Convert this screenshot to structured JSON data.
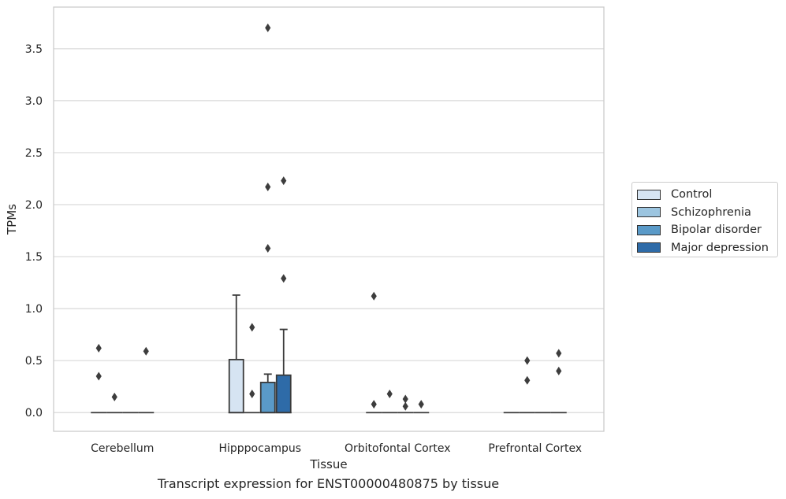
{
  "chart_data": {
    "type": "box",
    "title": "",
    "xlabel": "Tissue",
    "ylabel": "TPMs",
    "caption": "Transcript expression for ENST00000480875 by tissue",
    "categories": [
      "Cerebellum",
      "Hipppocampus",
      "Orbitofontal Cortex",
      "Prefrontal Cortex"
    ],
    "ylim": [
      -0.18,
      3.9
    ],
    "yticks": [
      0.0,
      0.5,
      1.0,
      1.5,
      2.0,
      2.5,
      3.0,
      3.5
    ],
    "ytick_labels": [
      "0.0",
      "0.5",
      "1.0",
      "1.5",
      "2.0",
      "2.5",
      "3.0",
      "3.5"
    ],
    "grid": "horizontal",
    "legend_position": "right",
    "series": [
      {
        "name": "Control",
        "color": "#d6e4f2",
        "boxes": [
          {
            "q1": 0,
            "median": 0,
            "q3": 0,
            "whisker_low": 0,
            "whisker_high": 0,
            "outliers": [
              0.62,
              0.35
            ]
          },
          {
            "q1": 0,
            "median": 0,
            "q3": 0.51,
            "whisker_low": 0,
            "whisker_high": 1.13,
            "outliers": []
          },
          {
            "q1": 0,
            "median": 0,
            "q3": 0,
            "whisker_low": 0,
            "whisker_high": 0,
            "outliers": [
              1.12,
              0.08
            ]
          },
          {
            "q1": 0,
            "median": 0,
            "q3": 0,
            "whisker_low": 0,
            "whisker_high": 0,
            "outliers": []
          }
        ]
      },
      {
        "name": "Schizophrenia",
        "color": "#9cc5e0",
        "boxes": [
          {
            "q1": 0,
            "median": 0,
            "q3": 0,
            "whisker_low": 0,
            "whisker_high": 0,
            "outliers": [
              0.15
            ]
          },
          {
            "q1": 0,
            "median": 0,
            "q3": 0,
            "whisker_low": 0,
            "whisker_high": 0,
            "outliers": [
              0.82,
              0.18
            ]
          },
          {
            "q1": 0,
            "median": 0,
            "q3": 0,
            "whisker_low": 0,
            "whisker_high": 0,
            "outliers": [
              0.18
            ]
          },
          {
            "q1": 0,
            "median": 0,
            "q3": 0,
            "whisker_low": 0,
            "whisker_high": 0,
            "outliers": [
              0.5,
              0.31
            ]
          }
        ]
      },
      {
        "name": "Bipolar disorder",
        "color": "#5a9ac8",
        "boxes": [
          {
            "q1": 0,
            "median": 0,
            "q3": 0,
            "whisker_low": 0,
            "whisker_high": 0,
            "outliers": []
          },
          {
            "q1": 0,
            "median": 0,
            "q3": 0.29,
            "whisker_low": 0,
            "whisker_high": 0.37,
            "outliers": [
              3.7,
              2.17,
              1.58
            ]
          },
          {
            "q1": 0,
            "median": 0,
            "q3": 0,
            "whisker_low": 0,
            "whisker_high": 0,
            "outliers": [
              0.13,
              0.06
            ]
          },
          {
            "q1": 0,
            "median": 0,
            "q3": 0,
            "whisker_low": 0,
            "whisker_high": 0,
            "outliers": []
          }
        ]
      },
      {
        "name": "Major depression",
        "color": "#2e6ba8",
        "boxes": [
          {
            "q1": 0,
            "median": 0,
            "q3": 0,
            "whisker_low": 0,
            "whisker_high": 0,
            "outliers": [
              0.59
            ]
          },
          {
            "q1": 0,
            "median": 0,
            "q3": 0.36,
            "whisker_low": 0,
            "whisker_high": 0.8,
            "outliers": [
              2.23,
              1.29
            ]
          },
          {
            "q1": 0,
            "median": 0,
            "q3": 0,
            "whisker_low": 0,
            "whisker_high": 0,
            "outliers": [
              0.08
            ]
          },
          {
            "q1": 0,
            "median": 0,
            "q3": 0,
            "whisker_low": 0,
            "whisker_high": 0,
            "outliers": [
              0.57,
              0.4
            ]
          }
        ]
      }
    ]
  }
}
